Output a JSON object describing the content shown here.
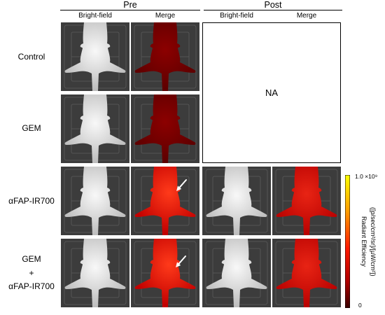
{
  "header": {
    "pre": "Pre",
    "post": "Post"
  },
  "columns": {
    "pre_bright_field": "Bright-field",
    "pre_merge": "Merge",
    "post_bright_field": "Bright-field",
    "post_merge": "Merge"
  },
  "rows": [
    {
      "label": "Control"
    },
    {
      "label": "GEM"
    },
    {
      "label": "αFAP-IR700"
    },
    {
      "label_lines": [
        "GEM",
        "+",
        "αFAP-IR700"
      ]
    }
  ],
  "not_available": "NA",
  "colorbar": {
    "max_label": "1.0 ×10⁹",
    "min_label": "0",
    "title": "Radiant Efficiency",
    "unit": "([p/sec/cm²/sr]/[µW/cm²])",
    "gradient": [
      "#ffff00",
      "#ff9a00",
      "#ff1a00",
      "#b00000",
      "#3a0000"
    ]
  },
  "colors": {
    "tile_background": "#3c3c3c",
    "tray_grid": "#5c5c5c",
    "bright_field_center": "#f8f8f8",
    "bright_field_edge": "#b8b8b8",
    "merge_low_center": "#8c0000",
    "merge_low_edge": "#5a0000",
    "merge_high_center": "#ff3a1a",
    "merge_high_edge": "#c20000",
    "merge_post_center": "#e82414",
    "merge_post_edge": "#b60000",
    "arrow": "#ffffff"
  },
  "icons": {
    "arrow": "arrow-icon",
    "mouse": "mouse-image"
  }
}
